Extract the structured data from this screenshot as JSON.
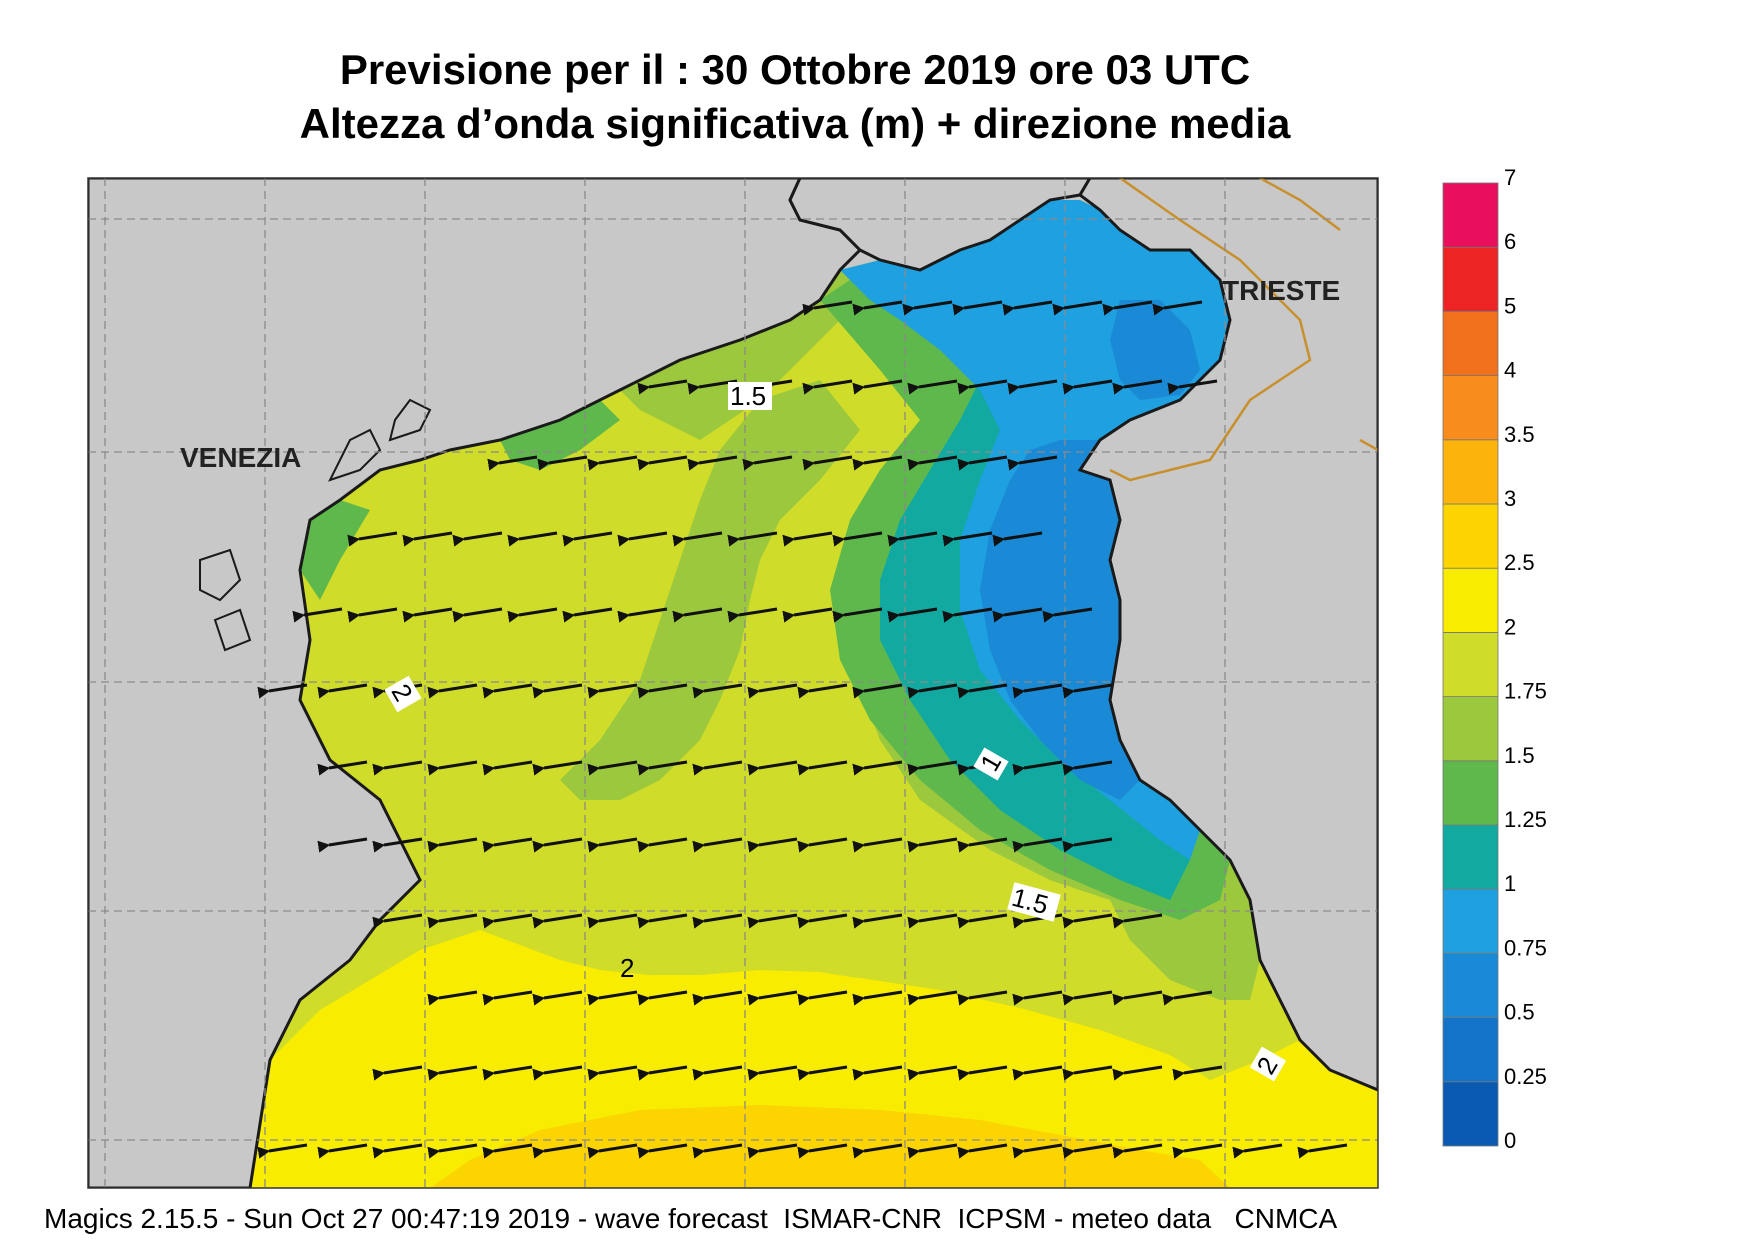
{
  "title": {
    "line1": "Previsione per il  :  30  Ottobre  2019   ore 03 UTC",
    "line2": "Altezza d’onda significativa (m) + direzione media"
  },
  "cities": {
    "venezia": "VENEZIA",
    "trieste": "TRIESTE"
  },
  "contour_labels": [
    "1.5",
    "2",
    "1",
    "1.5",
    "2",
    "2"
  ],
  "legend": {
    "levels": [
      "0",
      "0.25",
      "0.5",
      "0.75",
      "1",
      "1.25",
      "1.5",
      "1.75",
      "2",
      "2.5",
      "3",
      "3.5",
      "4",
      "5",
      "6",
      "7"
    ],
    "colors": [
      "#0a5ab4",
      "#1273c8",
      "#1a8ad6",
      "#1fa0e0",
      "#12aaa0",
      "#5fb84c",
      "#9cc83e",
      "#d0dc2a",
      "#f8ec00",
      "#fcd400",
      "#fcb40c",
      "#f88c1c",
      "#f0701c",
      "#ec2424",
      "#e8105c"
    ]
  },
  "footer": "Magics 2.15.5 - Sun Oct 27 00:47:19 2019 - wave forecast  ISMAR-CNR  ICPSM - meteo data   CNMCA",
  "colors": {
    "land": "#c8c8c8",
    "coast": "#1a1a1a",
    "border": "#c8902c",
    "grid": "#8a8a8a"
  }
}
